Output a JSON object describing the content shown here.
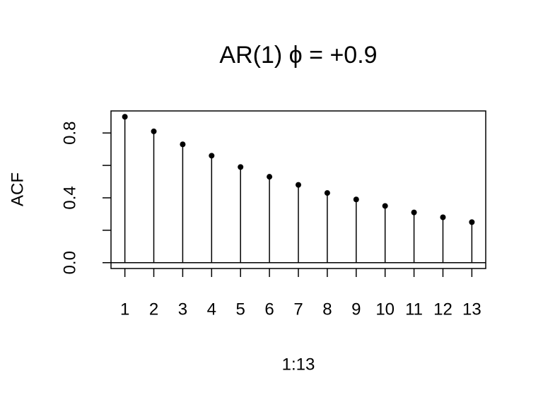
{
  "chart_data": {
    "type": "stem",
    "title": "AR(1)   ϕ = +0.9",
    "x_label": "1:13",
    "y_label": "ACF",
    "x": [
      1,
      2,
      3,
      4,
      5,
      6,
      7,
      8,
      9,
      10,
      11,
      12,
      13
    ],
    "values": [
      0.9,
      0.81,
      0.73,
      0.66,
      0.59,
      0.53,
      0.48,
      0.43,
      0.39,
      0.35,
      0.31,
      0.28,
      0.25
    ],
    "color": "#000000",
    "xlim": [
      0.52,
      13.48
    ],
    "xticks": [
      1,
      2,
      3,
      4,
      5,
      6,
      7,
      8,
      9,
      10,
      11,
      12,
      13
    ],
    "ylim": [
      -0.036,
      0.936
    ],
    "yticks": [
      {
        "value": 0,
        "label": "0.0"
      },
      {
        "value": 0.2,
        "label": null
      },
      {
        "value": 0.4,
        "label": "0.4"
      },
      {
        "value": 0.6,
        "label": null
      },
      {
        "value": 0.8,
        "label": "0.8"
      }
    ],
    "hline": 0
  }
}
